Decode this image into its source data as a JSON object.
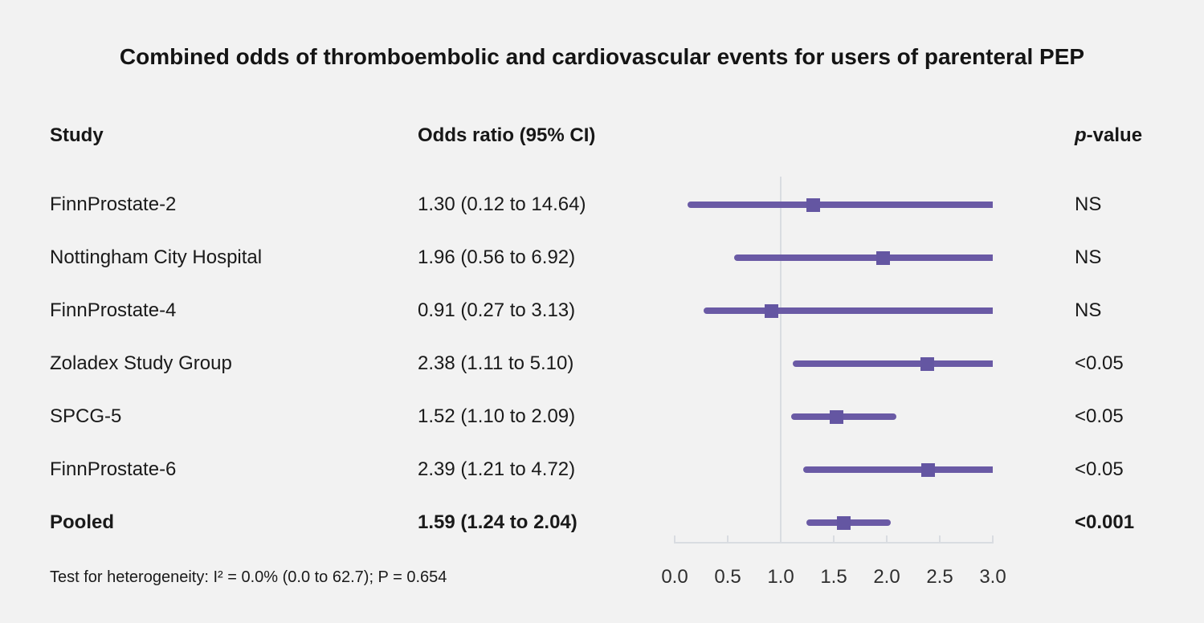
{
  "title": "Combined odds of thromboembolic and cardiovascular events for users of parenteral PEP",
  "header": {
    "study": "Study",
    "odds_ratio": "Odds ratio (95% CI)",
    "p_italic": "p",
    "p_rest": "-value"
  },
  "footer": "Test for heterogeneity: I² = 0.0% (0.0 to 62.7); P = 0.654",
  "colors": {
    "background": "#f2f2f2",
    "text": "#1a1a1a",
    "ci_line": "#6a5aa5",
    "marker": "#6456a2",
    "axis": "#d9dce1"
  },
  "chart_data": {
    "type": "forest",
    "title": "Combined odds of thromboembolic and cardiovascular events for users of parenteral PEP",
    "xlim": [
      0,
      3.0
    ],
    "reference_line": 1.0,
    "x_tick_values": [
      0,
      0.5,
      1.0,
      1.5,
      2.0,
      2.5,
      3.0
    ],
    "x_tick_labels": [
      "0.0",
      "0.5",
      "1.0",
      "1.5",
      "2.0",
      "2.5",
      "3.0"
    ],
    "grid": false,
    "legend": "none",
    "rows": [
      {
        "study": "FinnProstate-2",
        "or": 1.3,
        "ci_low": 0.12,
        "ci_high": 14.64,
        "or_text": "1.30 (0.12 to 14.64)",
        "p": "NS",
        "bold": false
      },
      {
        "study": "Nottingham City Hospital",
        "or": 1.96,
        "ci_low": 0.56,
        "ci_high": 6.92,
        "or_text": "1.96 (0.56 to 6.92)",
        "p": "NS",
        "bold": false
      },
      {
        "study": "FinnProstate-4",
        "or": 0.91,
        "ci_low": 0.27,
        "ci_high": 3.13,
        "or_text": "0.91 (0.27 to 3.13)",
        "p": "NS",
        "bold": false
      },
      {
        "study": "Zoladex Study Group",
        "or": 2.38,
        "ci_low": 1.11,
        "ci_high": 5.1,
        "or_text": "2.38 (1.11 to 5.10)",
        "p": "<0.05",
        "bold": false
      },
      {
        "study": "SPCG-5",
        "or": 1.52,
        "ci_low": 1.1,
        "ci_high": 2.09,
        "or_text": "1.52 (1.10 to 2.09)",
        "p": "<0.05",
        "bold": false
      },
      {
        "study": "FinnProstate-6",
        "or": 2.39,
        "ci_low": 1.21,
        "ci_high": 4.72,
        "or_text": "2.39 (1.21 to 4.72)",
        "p": "<0.05",
        "bold": false
      },
      {
        "study": "Pooled",
        "or": 1.59,
        "ci_low": 1.24,
        "ci_high": 2.04,
        "or_text": "1.59 (1.24 to 2.04)",
        "p": "<0.001",
        "bold": true
      }
    ]
  }
}
